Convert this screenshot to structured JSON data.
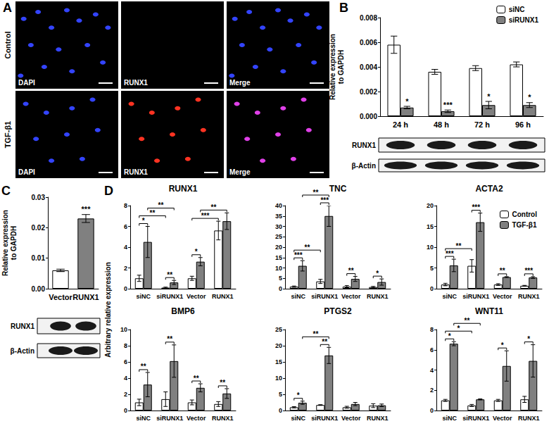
{
  "figure": {
    "panel_labels": [
      "A",
      "B",
      "C",
      "D"
    ],
    "images": {
      "rows": [
        "Control",
        "TGF-β1"
      ],
      "columns": [
        "DAPI",
        "RUNX1",
        "Merge"
      ]
    },
    "blots": {
      "B": [
        "RUNX1",
        "β-Actin"
      ],
      "C": [
        "RUNX1",
        "β-Actin"
      ]
    },
    "shared_y_label": "Arbitrary relative expression"
  },
  "chart_data": [
    {
      "type": "bar",
      "y_label": "Relative expression\nto GAPDH",
      "categories": [
        "24 h",
        "48 h",
        "72 h",
        "96 h"
      ],
      "series": [
        {
          "name": "siNC",
          "color": "#ffffff",
          "values": [
            0.0058,
            0.0036,
            0.0039,
            0.0042
          ],
          "errors": [
            0.0007,
            0.0002,
            0.0002,
            0.0002
          ]
        },
        {
          "name": "siRUNX1",
          "color": "#808080",
          "values": [
            0.0007,
            0.0004,
            0.0009,
            0.0009
          ],
          "errors": [
            0.0001,
            0.0001,
            0.0003,
            0.0002
          ]
        }
      ],
      "ylim": [
        0,
        0.008
      ],
      "yticks": [
        {
          "value": 0,
          "label": "0.000"
        },
        {
          "value": 0.002,
          "label": "0.002"
        },
        {
          "value": 0.004,
          "label": "0.004"
        },
        {
          "value": 0.006,
          "label": "0.006"
        },
        {
          "value": 0.008,
          "label": "0.008"
        }
      ],
      "legend": "top-right",
      "annotations": [
        {
          "category": 0,
          "series": 1,
          "text": "*"
        },
        {
          "category": 1,
          "series": 1,
          "text": "***"
        },
        {
          "category": 2,
          "series": 1,
          "text": "*"
        },
        {
          "category": 3,
          "series": 1,
          "text": "*"
        }
      ]
    },
    {
      "type": "bar",
      "y_label": "Relative expression\nto GAPDH",
      "categories": [
        "Vector",
        "RUNX1"
      ],
      "values": [
        0.006,
        0.023
      ],
      "errors": [
        0.0004,
        0.0013
      ],
      "colors": [
        "#ffffff",
        "#808080"
      ],
      "ylim": [
        0,
        0.03
      ],
      "yticks": [
        {
          "value": 0,
          "label": "0.00"
        },
        {
          "value": 0.01,
          "label": "0.01"
        },
        {
          "value": 0.02,
          "label": "0.02"
        },
        {
          "value": 0.03,
          "label": "0.03"
        }
      ],
      "annotations": [
        {
          "category": 1,
          "series": 0,
          "text": "***"
        }
      ]
    },
    {
      "type": "bar",
      "title": "RUNX1",
      "categories": [
        "siNC",
        "siRUNX1",
        "Vector",
        "RUNX1"
      ],
      "series": [
        {
          "name": "Control",
          "color": "#ffffff",
          "values": [
            1.0,
            0.1,
            1.0,
            5.6
          ],
          "errors": [
            0.3,
            0.05,
            0.2,
            0.9
          ]
        },
        {
          "name": "TGF-β1",
          "color": "#808080",
          "values": [
            4.5,
            0.6,
            2.6,
            6.5
          ],
          "errors": [
            1.5,
            0.2,
            0.4,
            0.8
          ]
        }
      ],
      "ylim": [
        0,
        8
      ],
      "yticks": [
        0,
        2,
        4,
        6,
        8
      ],
      "brackets": [
        {
          "from": [
            0,
            0
          ],
          "to": [
            0,
            1
          ],
          "label": "*"
        },
        {
          "from": [
            0,
            0
          ],
          "to": [
            1,
            0
          ],
          "label": "**"
        },
        {
          "from": [
            0,
            1
          ],
          "to": [
            1,
            1
          ],
          "label": "**"
        },
        {
          "from": [
            1,
            0
          ],
          "to": [
            1,
            1
          ],
          "label": "**"
        },
        {
          "from": [
            2,
            0
          ],
          "to": [
            2,
            1
          ],
          "label": "*"
        },
        {
          "from": [
            2,
            0
          ],
          "to": [
            3,
            0
          ],
          "label": "***"
        },
        {
          "from": [
            2,
            1
          ],
          "to": [
            3,
            1
          ],
          "label": "**"
        }
      ]
    },
    {
      "type": "bar",
      "title": "TNC",
      "categories": [
        "siNC",
        "siRUNX1",
        "Vector",
        "RUNX1"
      ],
      "series": [
        {
          "name": "Control",
          "color": "#ffffff",
          "values": [
            1.0,
            3.5,
            1.0,
            0.8
          ],
          "errors": [
            0.3,
            1.0,
            0.5,
            0.3
          ]
        },
        {
          "name": "TGF-β1",
          "color": "#808080",
          "values": [
            11,
            35,
            4.7,
            3.2
          ],
          "errors": [
            2.5,
            5,
            1.2,
            1.5
          ]
        }
      ],
      "ylim": [
        0,
        40
      ],
      "yticks": [
        0,
        5,
        10,
        15,
        20,
        25,
        30,
        35,
        40
      ],
      "brackets": [
        {
          "from": [
            0,
            0
          ],
          "to": [
            0,
            1
          ],
          "label": "***"
        },
        {
          "from": [
            0,
            0
          ],
          "to": [
            1,
            0
          ],
          "label": "**"
        },
        {
          "from": [
            0,
            1
          ],
          "to": [
            1,
            1
          ],
          "label": "**"
        },
        {
          "from": [
            1,
            0
          ],
          "to": [
            1,
            1
          ],
          "label": "***"
        },
        {
          "from": [
            2,
            0
          ],
          "to": [
            2,
            1
          ],
          "label": "**"
        },
        {
          "from": [
            3,
            0
          ],
          "to": [
            3,
            1
          ],
          "label": "*"
        }
      ]
    },
    {
      "type": "bar",
      "title": "ACTA2",
      "categories": [
        "siNC",
        "siRUNX1",
        "Vector",
        "RUNX1"
      ],
      "series": [
        {
          "name": "Control",
          "color": "#ffffff",
          "values": [
            1.0,
            5.5,
            1.0,
            0.7
          ],
          "errors": [
            0.3,
            1.5,
            0.2,
            0.1
          ]
        },
        {
          "name": "TGF-β1",
          "color": "#808080",
          "values": [
            5.6,
            16,
            2.8,
            2.7
          ],
          "errors": [
            1.5,
            2.2,
            0.1,
            0.2
          ]
        }
      ],
      "ylim": [
        0,
        20
      ],
      "yticks": [
        0,
        5,
        10,
        15,
        20
      ],
      "legend": "top-right",
      "brackets": [
        {
          "from": [
            0,
            0
          ],
          "to": [
            0,
            1
          ],
          "label": "***"
        },
        {
          "from": [
            0,
            0
          ],
          "to": [
            1,
            0
          ],
          "label": "**"
        },
        {
          "from": [
            1,
            0
          ],
          "to": [
            1,
            1
          ],
          "label": "***"
        },
        {
          "from": [
            2,
            0
          ],
          "to": [
            2,
            1
          ],
          "label": "**"
        },
        {
          "from": [
            3,
            0
          ],
          "to": [
            3,
            1
          ],
          "label": "***"
        }
      ]
    },
    {
      "type": "bar",
      "title": "BMP6",
      "categories": [
        "siNC",
        "siRUNX1",
        "Vector",
        "RUNX1"
      ],
      "series": [
        {
          "name": "Control",
          "color": "#ffffff",
          "values": [
            1.0,
            1.4,
            1.0,
            0.8
          ],
          "errors": [
            0.4,
            0.9,
            0.3,
            0.3
          ]
        },
        {
          "name": "TGF-β1",
          "color": "#808080",
          "values": [
            3.2,
            6.1,
            2.8,
            2.1
          ],
          "errors": [
            1.5,
            2.0,
            0.5,
            0.6
          ]
        }
      ],
      "ylim": [
        0,
        10
      ],
      "yticks": [
        0,
        2,
        4,
        6,
        8,
        10
      ],
      "brackets": [
        {
          "from": [
            0,
            0
          ],
          "to": [
            0,
            1
          ],
          "label": "**"
        },
        {
          "from": [
            1,
            0
          ],
          "to": [
            1,
            1
          ],
          "label": "**"
        },
        {
          "from": [
            2,
            0
          ],
          "to": [
            2,
            1
          ],
          "label": "**"
        },
        {
          "from": [
            3,
            0
          ],
          "to": [
            3,
            1
          ],
          "label": "**"
        }
      ]
    },
    {
      "type": "bar",
      "title": "PTGS2",
      "categories": [
        "siNC",
        "siRUNX1",
        "Vector",
        "RUNX1"
      ],
      "series": [
        {
          "name": "Control",
          "color": "#ffffff",
          "values": [
            1.0,
            1.7,
            1.0,
            1.5
          ],
          "errors": [
            0.2,
            0.1,
            0.3,
            0.6
          ]
        },
        {
          "name": "TGF-β1",
          "color": "#808080",
          "values": [
            2.4,
            17,
            2.0,
            1.6
          ],
          "errors": [
            0.5,
            2.5,
            0.5,
            0.4
          ]
        }
      ],
      "ylim": [
        0,
        25
      ],
      "yticks": [
        0,
        5,
        10,
        15,
        20,
        25
      ],
      "brackets": [
        {
          "from": [
            0,
            0
          ],
          "to": [
            0,
            1
          ],
          "label": "*"
        },
        {
          "from": [
            0,
            1
          ],
          "to": [
            1,
            1
          ],
          "label": "**"
        },
        {
          "from": [
            1,
            0
          ],
          "to": [
            1,
            1
          ],
          "label": "**"
        }
      ]
    },
    {
      "type": "bar",
      "title": "WNT11",
      "categories": [
        "siNC",
        "siRUNX1",
        "Vector",
        "RUNX1"
      ],
      "series": [
        {
          "name": "Control",
          "color": "#ffffff",
          "values": [
            1.0,
            0.5,
            1.0,
            1.1
          ],
          "errors": [
            0.1,
            0.1,
            0.1,
            0.3
          ]
        },
        {
          "name": "TGF-β1",
          "color": "#808080",
          "values": [
            6.6,
            1.1,
            4.4,
            4.9
          ],
          "errors": [
            0.2,
            0.05,
            1.5,
            1.6
          ]
        }
      ],
      "ylim": [
        0,
        8
      ],
      "yticks": [
        0,
        2,
        4,
        6,
        8
      ],
      "brackets": [
        {
          "from": [
            0,
            0
          ],
          "to": [
            0,
            1
          ],
          "label": "*"
        },
        {
          "from": [
            0,
            0
          ],
          "to": [
            1,
            0
          ],
          "label": "*"
        },
        {
          "from": [
            0,
            1
          ],
          "to": [
            1,
            1
          ],
          "label": "**"
        },
        {
          "from": [
            2,
            0
          ],
          "to": [
            2,
            1
          ],
          "label": "*"
        },
        {
          "from": [
            3,
            0
          ],
          "to": [
            3,
            1
          ],
          "label": "*"
        }
      ]
    }
  ]
}
